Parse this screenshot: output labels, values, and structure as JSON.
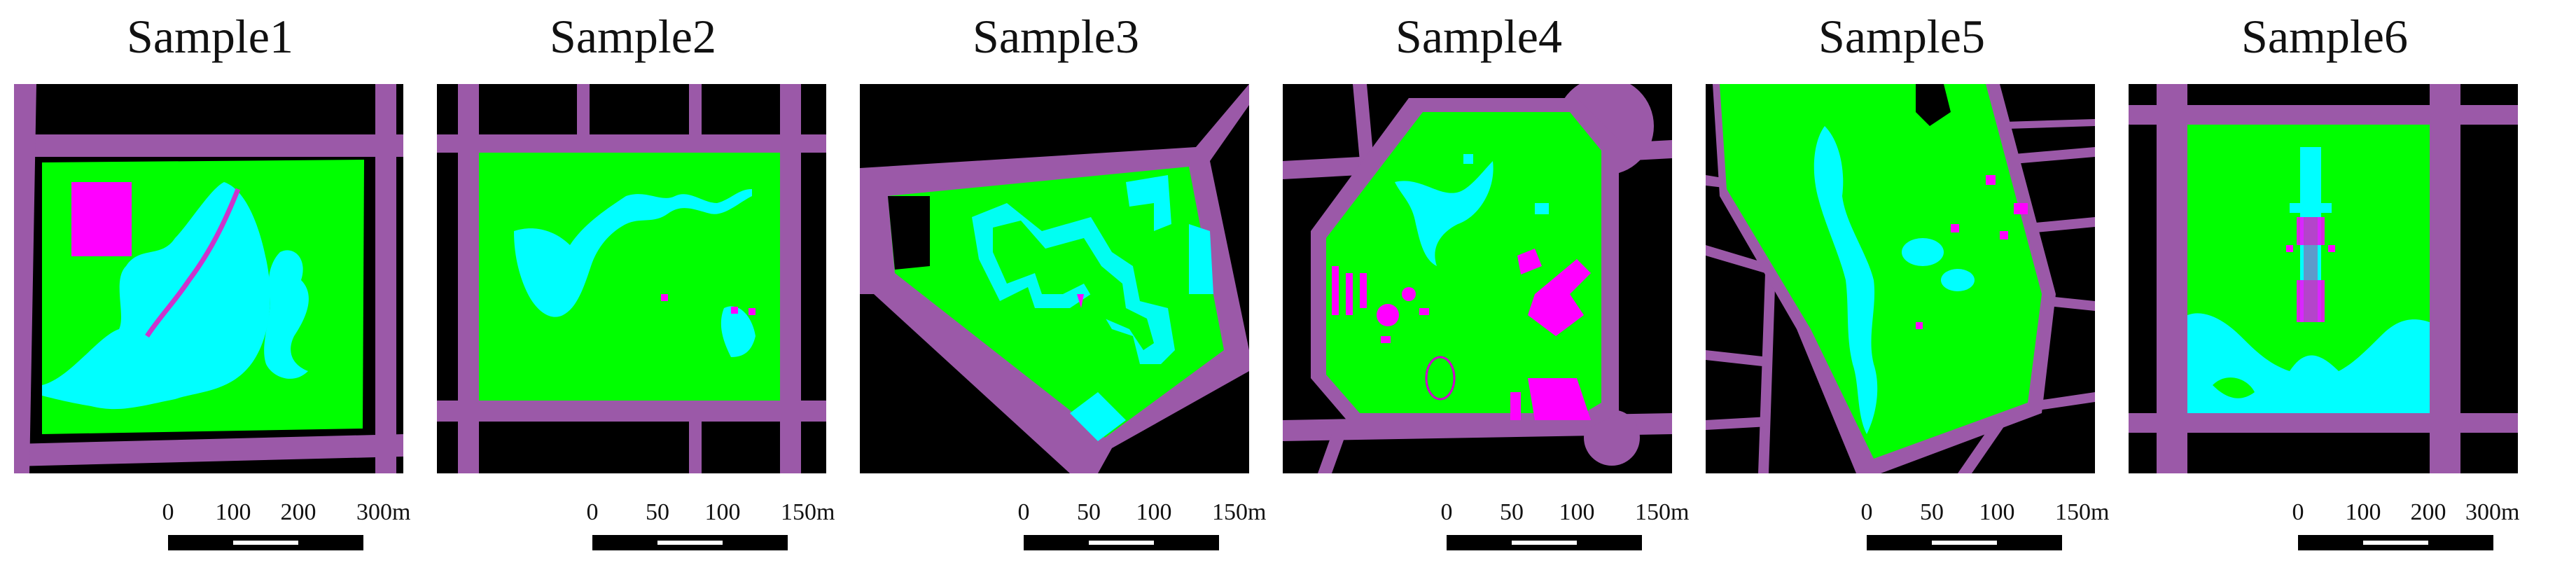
{
  "colors": {
    "background": "#000000",
    "road": "#9b59a8",
    "green": "#00ff00",
    "water": "#00ffff",
    "building": "#ff00ff"
  },
  "samples": [
    {
      "title": "Sample1",
      "scale": [
        "0",
        "100",
        "200",
        "300m"
      ]
    },
    {
      "title": "Sample2",
      "scale": [
        "0",
        "50",
        "100",
        "150m"
      ]
    },
    {
      "title": "Sample3",
      "scale": [
        "0",
        "50",
        "100",
        "150m"
      ]
    },
    {
      "title": "Sample4",
      "scale": [
        "0",
        "50",
        "100",
        "150m"
      ]
    },
    {
      "title": "Sample5",
      "scale": [
        "0",
        "50",
        "100",
        "150m"
      ]
    },
    {
      "title": "Sample6",
      "scale": [
        "0",
        "100",
        "200",
        "300m"
      ]
    }
  ]
}
